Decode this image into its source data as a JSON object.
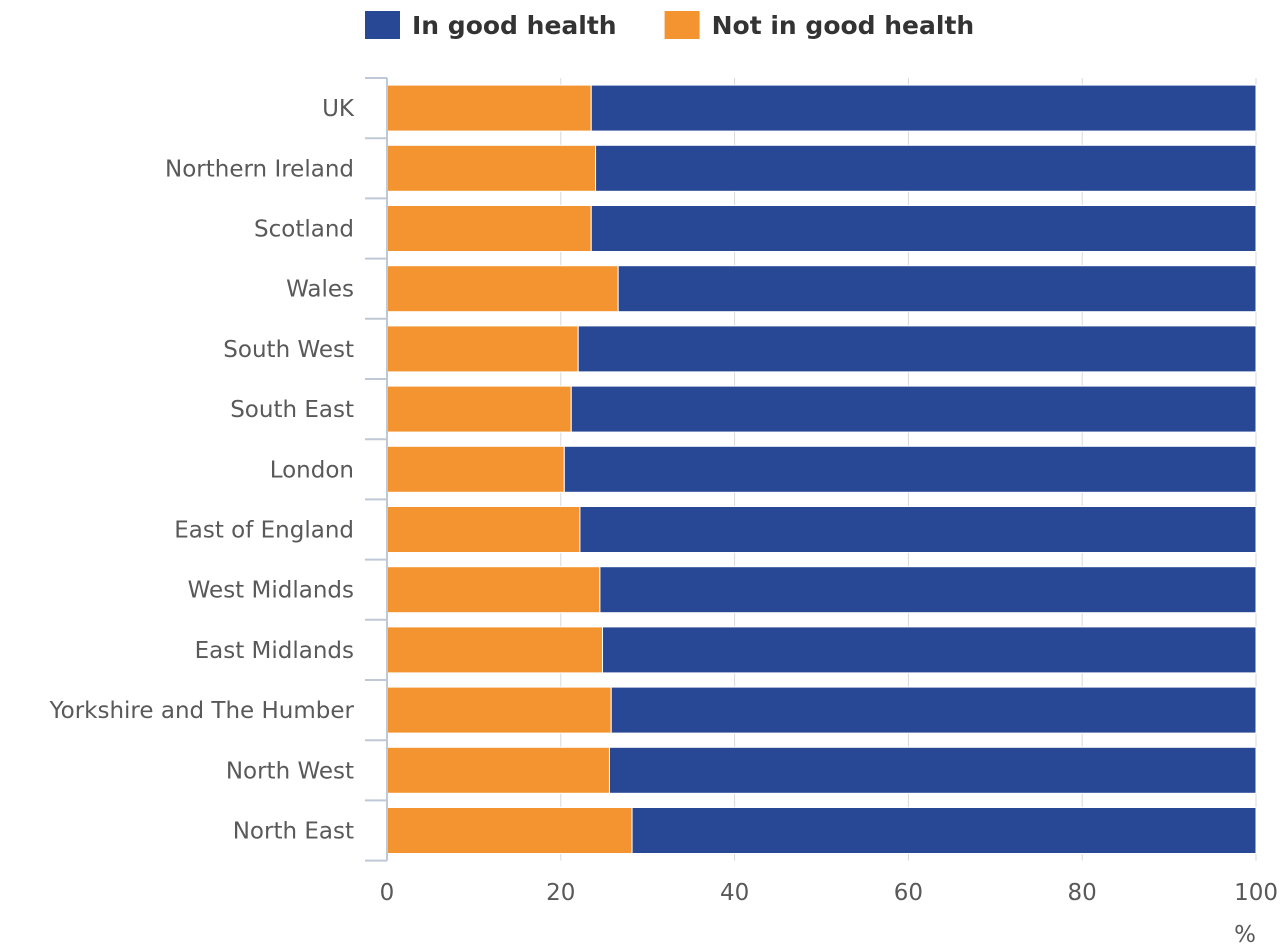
{
  "chart_data": {
    "type": "bar",
    "orientation": "horizontal",
    "stacked": true,
    "categories": [
      "UK",
      "Northern Ireland",
      "Scotland",
      "Wales",
      "South West",
      "South East",
      "London",
      "East of England",
      "West Midlands",
      "East Midlands",
      "Yorkshire and The Humber",
      "North West",
      "North East"
    ],
    "series": [
      {
        "name": "Not in good health",
        "color": "#F39431",
        "values": [
          23.5,
          24.0,
          23.5,
          26.6,
          22.0,
          21.2,
          20.4,
          22.2,
          24.5,
          24.8,
          25.8,
          25.6,
          28.2
        ]
      },
      {
        "name": "In good health",
        "color": "#284896",
        "values": [
          76.5,
          76.0,
          76.5,
          73.4,
          78.0,
          78.8,
          79.6,
          77.8,
          75.5,
          75.2,
          74.2,
          74.4,
          71.8
        ]
      }
    ],
    "legend_order": [
      "In good health",
      "Not in good health"
    ],
    "legend_position": "top",
    "xlim": [
      0,
      100
    ],
    "xticks": [
      "0",
      "20",
      "40",
      "60",
      "80",
      "100"
    ],
    "xunit": "%",
    "grid": "vertical",
    "xlabel": "",
    "ylabel": ""
  }
}
